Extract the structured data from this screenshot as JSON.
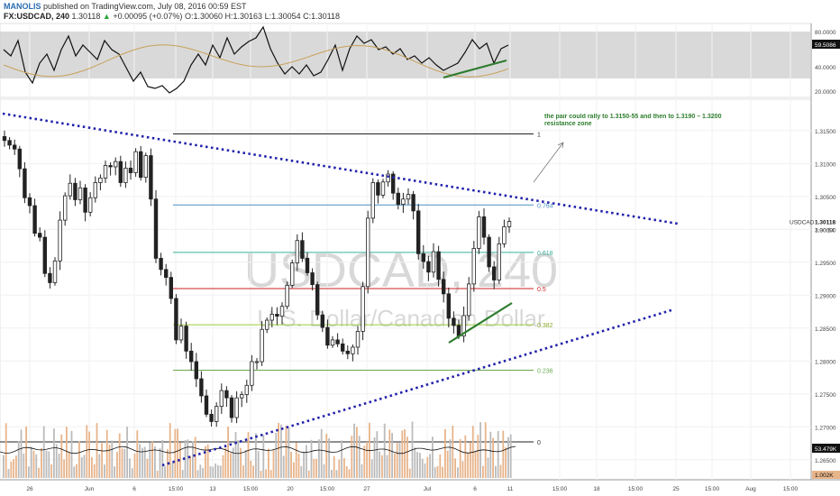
{
  "header": {
    "author": "MANOLIS",
    "published": "published on TradingView.com, July 08, 2016 00:59 EST",
    "symbol": "FX:USDCAD, 240",
    "price": "1.30118",
    "change_arrow": "▲",
    "change": "+0.00095 (+0.07%)",
    "open": "O:1.30060",
    "high": "H:1.30163",
    "low": "L:1.30054",
    "close": "C:1.30118"
  },
  "watermark": {
    "symbol": "USDCAD, 240",
    "description": "U.S. Dollar/Canadian Dollar"
  },
  "annotation": "the pair could rally to 1.3150-55 and then to 1.3190 – 1.3200 resistance zone",
  "colors": {
    "candle": "#222222",
    "trendline": "#2222aa",
    "support_line": "#2e7d2e",
    "volume_up": "#e8b48a",
    "volume_down": "#bbbbbb",
    "osc_band": "#cccccc"
  },
  "chart_data": [
    {
      "type": "candlestick",
      "symbol": "FX:USDCAD",
      "interval": "240",
      "x_ticks": [
        "26",
        "Jun",
        "6",
        "15:00",
        "13",
        "15:00",
        "20",
        "15:00",
        "27",
        "Jul",
        "6",
        "11",
        "15:00",
        "18",
        "15:00",
        "25",
        "15:00",
        "Aug",
        "15:00"
      ],
      "y_ticks": [
        "1.31500",
        "1.31000",
        "1.30500",
        "1.30000",
        "1.29500",
        "1.29000",
        "1.28500",
        "1.28000",
        "1.27500",
        "1.27000",
        "1.26500"
      ],
      "ylim": [
        1.2625,
        1.3195
      ],
      "last_price_label": "USDCAD",
      "last_price": "1.30118",
      "countdown": "3:00:54",
      "fibonacci": [
        {
          "level": "1",
          "price": 1.3145
        },
        {
          "level": "0.764",
          "price": 1.3037
        },
        {
          "level": "0.618",
          "price": 1.2965
        },
        {
          "level": "0.5",
          "price": 1.291
        },
        {
          "level": "0.382",
          "price": 1.2855
        },
        {
          "level": "0.236",
          "price": 1.2786
        },
        {
          "level": "0",
          "price": 1.2677
        }
      ],
      "closes": [
        1.3135,
        1.3128,
        1.3122,
        1.3092,
        1.3048,
        1.3036,
        1.2994,
        1.2988,
        1.2933,
        1.2919,
        1.2952,
        1.3014,
        1.3051,
        1.307,
        1.3045,
        1.3063,
        1.3026,
        1.3048,
        1.3071,
        1.3078,
        1.3097,
        1.3095,
        1.3103,
        1.3071,
        1.3093,
        1.3086,
        1.3118,
        1.3079,
        1.3112,
        1.3046,
        1.2956,
        1.2939,
        1.2927,
        1.2895,
        1.2832,
        1.2853,
        1.2815,
        1.2799,
        1.2773,
        1.2747,
        1.2719,
        1.2708,
        1.2731,
        1.2755,
        1.2744,
        1.2714,
        1.2744,
        1.2749,
        1.2763,
        1.2799,
        1.2799,
        1.2848,
        1.2862,
        1.2871,
        1.2868,
        1.2883,
        1.2915,
        1.2949,
        1.2983,
        1.2956,
        1.2934,
        1.2916,
        1.287,
        1.2851,
        1.2824,
        1.2832,
        1.2826,
        1.2815,
        1.2811,
        1.2821,
        1.2845,
        1.2913,
        1.3017,
        1.3071,
        1.3052,
        1.3072,
        1.3084,
        1.3055,
        1.3038,
        1.3046,
        1.3053,
        1.3028,
        1.2963,
        1.2951,
        1.2935,
        1.2966,
        1.2924,
        1.2902,
        1.2865,
        1.2854,
        1.2838,
        1.2869,
        1.2917,
        1.2971,
        1.3019,
        1.2988,
        1.2943,
        1.2923,
        1.2978,
        1.3004,
        1.3012
      ]
    },
    {
      "type": "line",
      "name": "Stochastic RSI",
      "last_value": "59.5086",
      "y_ticks": [
        "80.0000",
        "40.0000",
        "20.0000"
      ],
      "ylim": [
        0,
        100
      ],
      "band": [
        20,
        80
      ]
    },
    {
      "type": "bar",
      "name": "Volume",
      "last_value": "53.479K",
      "last_value_2": "1.002K"
    }
  ]
}
